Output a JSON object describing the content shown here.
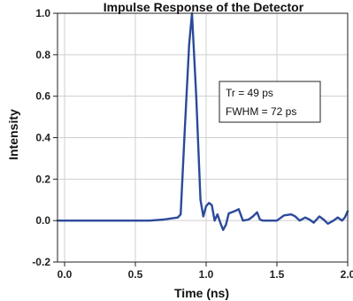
{
  "chart_data": {
    "type": "line",
    "title": "Impulse Response of the Detector",
    "xlabel": "Time (ns)",
    "ylabel": "Intensity",
    "xlim": [
      -0.05,
      2.0
    ],
    "ylim": [
      -0.2,
      1.0
    ],
    "xticks": [
      "0.0",
      "0.5",
      "1.0",
      "1.5",
      "2.0"
    ],
    "yticks": [
      "-0.2",
      "0.0",
      "0.2",
      "0.4",
      "0.6",
      "0.8",
      "1.0"
    ],
    "grid": true,
    "annotations": [
      "Tr = 49 ps",
      "FWHM = 72 ps"
    ],
    "series_color": "#2b4a9a",
    "series": [
      {
        "x": [
          -0.05,
          0.0,
          0.2,
          0.4,
          0.6,
          0.7,
          0.75,
          0.8,
          0.82,
          0.85,
          0.88,
          0.9,
          0.93,
          0.96,
          0.98,
          1.0,
          1.02,
          1.04,
          1.06,
          1.08,
          1.1,
          1.12,
          1.14,
          1.16,
          1.2,
          1.23,
          1.26,
          1.3,
          1.33,
          1.36,
          1.38,
          1.4,
          1.45,
          1.5,
          1.55,
          1.6,
          1.63,
          1.66,
          1.7,
          1.73,
          1.76,
          1.8,
          1.83,
          1.86,
          1.9,
          1.93,
          1.96,
          1.98,
          2.0
        ],
        "y": [
          0.0,
          0.0,
          0.0,
          0.0,
          0.0,
          0.005,
          0.01,
          0.015,
          0.03,
          0.45,
          0.85,
          1.0,
          0.6,
          0.1,
          0.02,
          0.07,
          0.085,
          0.075,
          0.0,
          0.03,
          -0.01,
          -0.045,
          -0.02,
          0.035,
          0.045,
          0.055,
          0.0,
          0.005,
          0.02,
          0.04,
          0.005,
          0.0,
          0.0,
          0.0,
          0.025,
          0.03,
          0.02,
          0.0,
          0.015,
          0.005,
          -0.01,
          0.02,
          0.005,
          -0.015,
          0.0,
          0.015,
          0.0,
          0.015,
          0.045
        ]
      }
    ]
  }
}
